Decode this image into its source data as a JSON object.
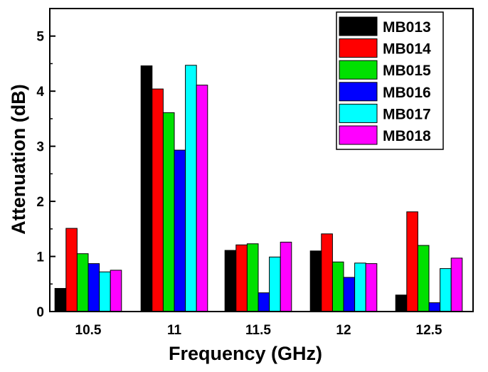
{
  "chart_data": {
    "type": "bar",
    "xlabel": "Frequency (GHz)",
    "ylabel": "Attenuation (dB)",
    "categories": [
      "10.5",
      "11",
      "11.5",
      "12",
      "12.5"
    ],
    "ylim": [
      0,
      5.5
    ],
    "yticks": [
      "0",
      "1",
      "2",
      "3",
      "4",
      "5"
    ],
    "legend_position": "top-right",
    "grid": false,
    "series": [
      {
        "name": "MB013",
        "color": "#000000",
        "values": [
          0.42,
          4.46,
          1.11,
          1.1,
          0.3
        ]
      },
      {
        "name": "MB014",
        "color": "#ff0000",
        "values": [
          1.51,
          4.04,
          1.21,
          1.41,
          1.81
        ]
      },
      {
        "name": "MB015",
        "color": "#00e000",
        "values": [
          1.05,
          3.61,
          1.23,
          0.9,
          1.2
        ]
      },
      {
        "name": "MB016",
        "color": "#0000ff",
        "values": [
          0.87,
          2.93,
          0.34,
          0.62,
          0.16
        ]
      },
      {
        "name": "MB017",
        "color": "#00ffff",
        "values": [
          0.72,
          4.47,
          0.99,
          0.88,
          0.78
        ]
      },
      {
        "name": "MB018",
        "color": "#ff00ff",
        "values": [
          0.75,
          4.11,
          1.26,
          0.87,
          0.97
        ]
      }
    ]
  }
}
